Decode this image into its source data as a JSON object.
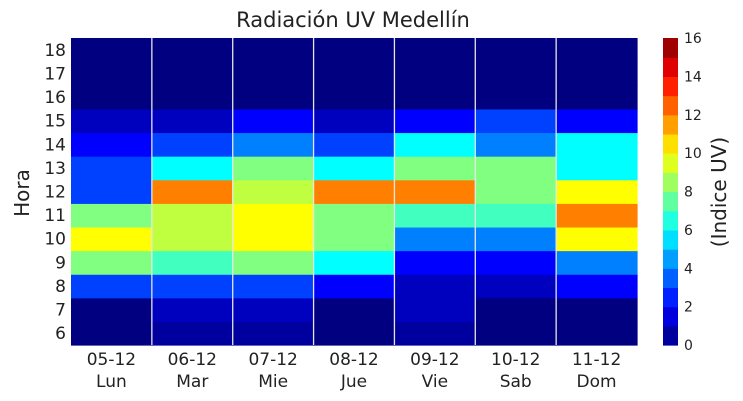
{
  "chart_data": {
    "type": "heatmap",
    "title": "Radiación UV Medellín",
    "xlabel": "",
    "ylabel": "Hora",
    "colorbar_label": "(Indice UV)",
    "colormap": "jet",
    "vmin": 0,
    "vmax": 16,
    "colorbar_ticks": [
      0,
      2,
      4,
      6,
      8,
      10,
      12,
      14,
      16
    ],
    "grid": "vertical",
    "x_categories": [
      {
        "date": "05-12",
        "day": "Lun"
      },
      {
        "date": "06-12",
        "day": "Mar"
      },
      {
        "date": "07-12",
        "day": "Mie"
      },
      {
        "date": "08-12",
        "day": "Jue"
      },
      {
        "date": "09-12",
        "day": "Vie"
      },
      {
        "date": "10-12",
        "day": "Sab"
      },
      {
        "date": "11-12",
        "day": "Dom"
      }
    ],
    "y_categories": [
      6,
      7,
      8,
      9,
      10,
      11,
      12,
      13,
      14,
      15,
      16,
      17,
      18
    ],
    "values": [
      [
        0,
        0.5,
        0.5,
        0,
        0.5,
        0,
        0
      ],
      [
        0,
        1,
        1,
        0,
        1,
        0,
        0
      ],
      [
        3,
        3,
        3,
        2,
        1,
        1,
        2
      ],
      [
        8,
        7,
        8,
        6,
        2,
        2,
        4
      ],
      [
        10,
        9,
        10,
        8,
        4,
        4,
        10
      ],
      [
        8,
        9,
        10,
        8,
        7,
        7,
        12
      ],
      [
        3,
        12,
        9,
        12,
        12,
        8,
        10
      ],
      [
        3,
        6,
        8,
        6,
        8,
        8,
        6
      ],
      [
        2,
        3,
        4,
        3,
        6,
        4,
        6
      ],
      [
        1,
        1,
        2,
        1,
        2,
        3,
        2
      ],
      [
        0,
        0,
        0,
        0,
        0,
        0,
        0
      ],
      [
        0,
        0,
        0,
        0,
        0,
        0,
        0
      ],
      [
        0,
        0,
        0,
        0,
        0,
        0,
        0
      ]
    ]
  }
}
